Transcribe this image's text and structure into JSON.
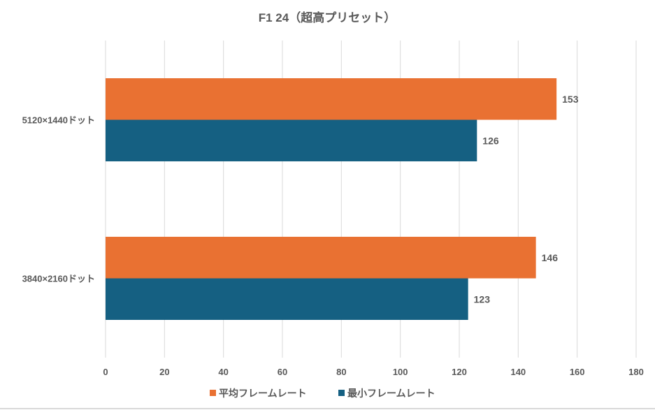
{
  "chart_data": {
    "type": "bar",
    "orientation": "horizontal",
    "title": "F1 24（超高プリセット）",
    "categories": [
      "5120×1440ドット",
      "3840×2160ドット"
    ],
    "series": [
      {
        "name": "平均フレームレート",
        "color": "#E97132",
        "values": [
          153,
          146
        ]
      },
      {
        "name": "最小フレームレート",
        "color": "#156082",
        "values": [
          126,
          123
        ]
      }
    ],
    "xlim": [
      0,
      180
    ],
    "xticks": [
      0,
      20,
      40,
      60,
      80,
      100,
      120,
      140,
      160,
      180
    ],
    "grid": true,
    "legend": "bottom",
    "xlabel": "",
    "ylabel": ""
  }
}
